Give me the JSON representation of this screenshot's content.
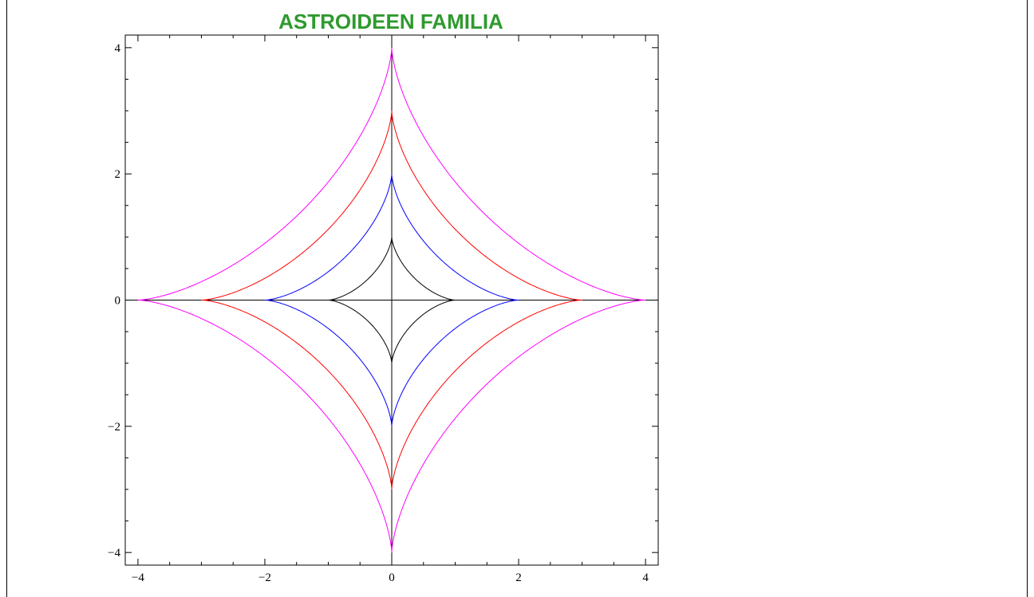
{
  "chart_data": {
    "type": "line",
    "title": "ASTROIDEEN FAMILIA",
    "title_color": "#2e9a2e",
    "xlim": [
      -4.2,
      4.2
    ],
    "ylim": [
      -4.2,
      4.2
    ],
    "xticks": [
      -4,
      -2,
      0,
      2,
      4
    ],
    "yticks": [
      -4,
      -2,
      0,
      2,
      4
    ],
    "xtick_labels": [
      "−4",
      "−2",
      "0",
      "2",
      "4"
    ],
    "ytick_labels": [
      "−4",
      "−2",
      "0",
      "2",
      "4"
    ],
    "grid": false,
    "axes_lines": true,
    "series": [
      {
        "a": 1,
        "color": "#000000"
      },
      {
        "a": 2,
        "color": "#0000ff"
      },
      {
        "a": 3,
        "color": "#ff0000"
      },
      {
        "a": 4,
        "color": "#ff00ff"
      }
    ]
  }
}
